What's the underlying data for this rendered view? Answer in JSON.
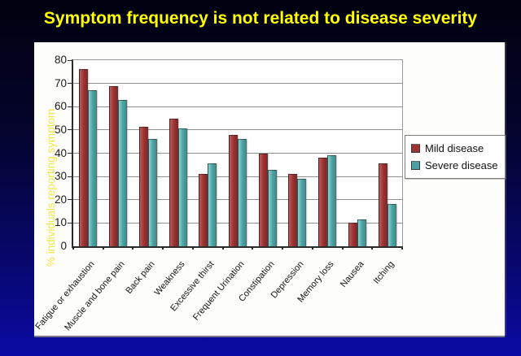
{
  "title": {
    "text": "Symptom frequency is not related to disease severity",
    "color": "#ffff00"
  },
  "chart_data": {
    "type": "bar",
    "title": "Symptom frequency is not related to disease severity",
    "ylabel": "% individuals reporting symptom",
    "xlabel": "",
    "ylim": [
      0,
      80
    ],
    "yticks": [
      0,
      10,
      20,
      30,
      40,
      50,
      60,
      70,
      80
    ],
    "grid": true,
    "legend_position": "right",
    "categories": [
      "Fatigue or exhaustion",
      "Muscle and bone pain",
      "Back pain",
      "Weakness",
      "Excessive thirst",
      "Frequent Urination",
      "Constipation",
      "Depression",
      "Memory loss",
      "Nausea",
      "Itching"
    ],
    "series": [
      {
        "name": "Mild disease",
        "color": "#9c3232",
        "color_light": "#b85c5c",
        "color_dark": "#872626",
        "values": [
          76,
          69,
          51.5,
          55,
          31,
          48,
          40,
          31,
          38,
          10,
          35.5
        ]
      },
      {
        "name": "Severe disease",
        "color": "#4aa2a2",
        "color_light": "#8fd0d0",
        "color_dark": "#3d9090",
        "values": [
          67,
          63,
          46,
          50.5,
          35.5,
          46,
          33,
          29,
          39,
          11.5,
          18
        ]
      }
    ]
  }
}
